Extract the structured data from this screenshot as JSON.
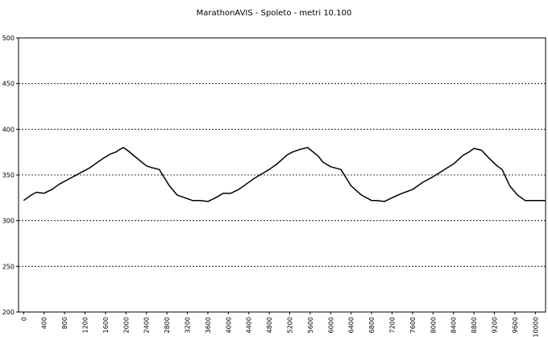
{
  "chart_data": {
    "type": "line",
    "title": "MarathonAVIS - Spoleto - metri 10.100",
    "xlabel": "",
    "ylabel": "",
    "ylim": [
      200,
      500
    ],
    "y_ticks": [
      200,
      250,
      300,
      350,
      400,
      450,
      500
    ],
    "x_range": [
      -100,
      10200
    ],
    "x_ticks": [
      0,
      400,
      800,
      1200,
      1600,
      2000,
      2400,
      2800,
      3200,
      3600,
      4000,
      4400,
      4800,
      5200,
      5600,
      6000,
      6400,
      6800,
      7200,
      7600,
      8000,
      8400,
      8800,
      9200,
      9600,
      10000
    ],
    "grid": "horizontal-dashed",
    "legend": "none",
    "line_color": "#000000",
    "series": [
      {
        "values_x": [
          0,
          150,
          250,
          400,
          550,
          700,
          900,
          1100,
          1300,
          1400,
          1550,
          1700,
          1800,
          1880,
          1950,
          2050,
          2200,
          2400,
          2500,
          2650,
          2850,
          3000,
          3300,
          3450,
          3600,
          3750,
          3900,
          4050,
          4200,
          4350,
          4500,
          4650,
          4800,
          4950,
          5150,
          5250,
          5400,
          5550,
          5750,
          5850,
          6000,
          6200,
          6400,
          6600,
          6800,
          6900,
          7050,
          7200,
          7400,
          7600,
          7800,
          8000,
          8200,
          8400,
          8600,
          8700,
          8800,
          8950,
          9100,
          9250,
          9350,
          9500,
          9650,
          9800,
          10000,
          10200
        ],
        "values_y": [
          322,
          328,
          331,
          330,
          334,
          340,
          346,
          352,
          358,
          362,
          368,
          373,
          375,
          378,
          380,
          376,
          369,
          360,
          358,
          356,
          338,
          328,
          322,
          322,
          321,
          325,
          330,
          330,
          334,
          340,
          346,
          351,
          356,
          362,
          372,
          375,
          378,
          380,
          371,
          364,
          359,
          356,
          338,
          328,
          322,
          322,
          321,
          325,
          330,
          334,
          342,
          348,
          355,
          362,
          372,
          375,
          379,
          377,
          368,
          360,
          356,
          338,
          328,
          322,
          322,
          322
        ]
      }
    ]
  }
}
